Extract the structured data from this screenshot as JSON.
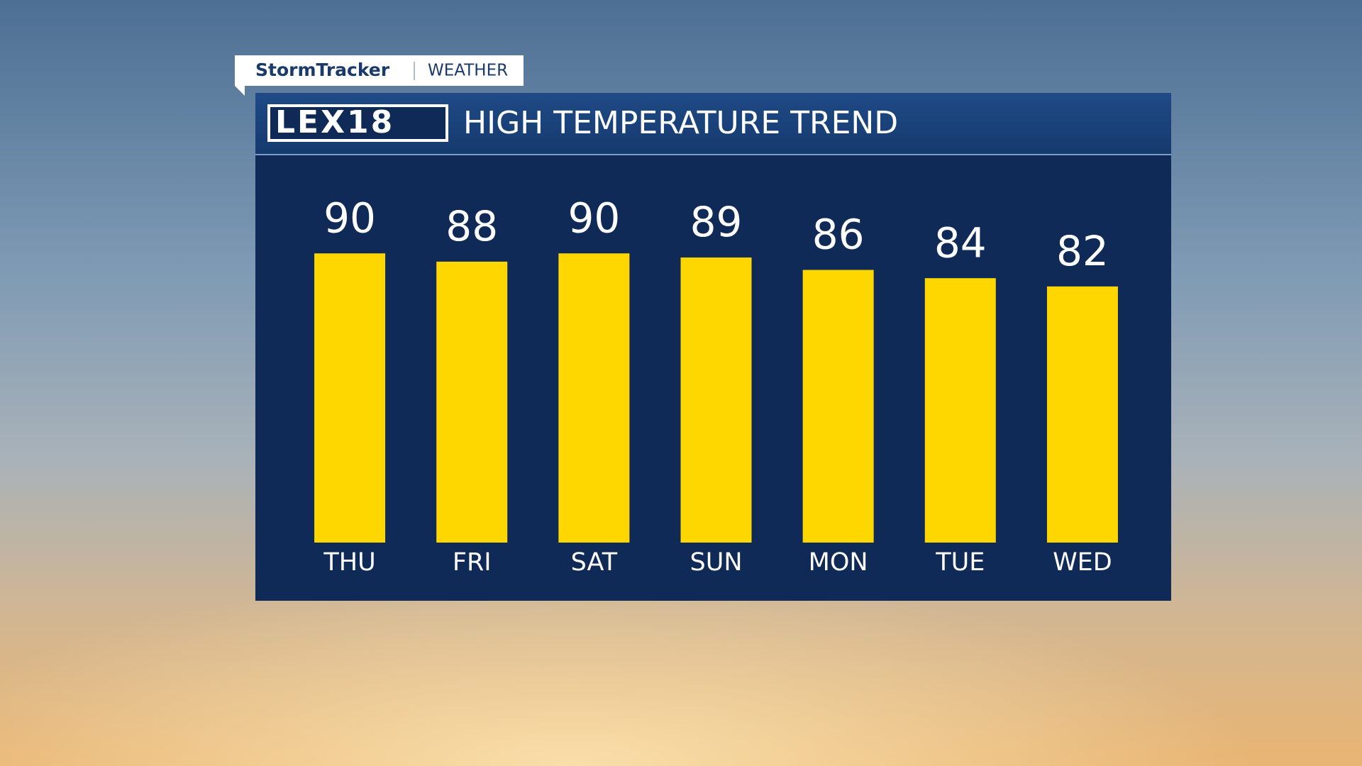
{
  "brand": "StormTracker",
  "section": "WEATHER",
  "logo": "LEX18",
  "chart_data": {
    "type": "bar",
    "title": "HIGH TEMPERATURE TREND",
    "categories": [
      "THU",
      "FRI",
      "SAT",
      "SUN",
      "MON",
      "TUE",
      "WED"
    ],
    "values": [
      90,
      88,
      90,
      89,
      86,
      84,
      82
    ],
    "color": "#ffd700",
    "ylim": [
      20,
      100
    ]
  }
}
